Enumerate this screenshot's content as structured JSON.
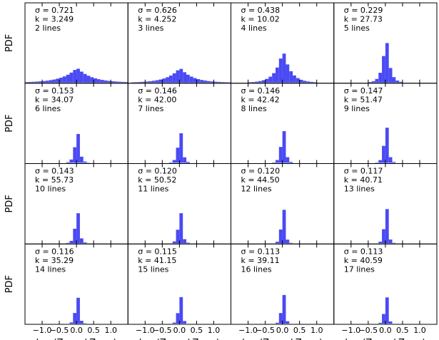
{
  "chart_data": {
    "type": "bar",
    "grid": false,
    "x_range": [
      -1.5,
      1.5
    ],
    "x_ticks": [
      "−1.0",
      "−0.5",
      "0.0",
      "0.5",
      "1.0"
    ],
    "x_tick_values": [
      -1.0,
      -0.5,
      0.0,
      0.5,
      1.0
    ],
    "y_label": "PDF",
    "x_label_parts": {
      "log": "log (Z",
      "true_sub": "TRUE",
      "slash": " / Z",
      "pred_sub": "PRED",
      "close": ")"
    },
    "panels": [
      {
        "sigma": "σ = 0.721",
        "k": "k = 3.249",
        "lines": "2 lines",
        "peak": 0.2,
        "width": 0.45,
        "scale": 1.0
      },
      {
        "sigma": "σ = 0.626",
        "k": "k = 4.252",
        "lines": "3 lines",
        "peak": 0.2,
        "width": 0.38,
        "scale": 1.0
      },
      {
        "sigma": "σ = 0.438",
        "k": "k = 10.02",
        "lines": "4 lines",
        "peak": 0.45,
        "width": 0.22,
        "scale": 1.0
      },
      {
        "sigma": "σ = 0.229",
        "k": "k = 27.73",
        "lines": "5 lines",
        "peak": 0.72,
        "width": 0.1,
        "scale": 1.0
      },
      {
        "sigma": "σ = 0.153",
        "k": "k = 34.07",
        "lines": "6 lines",
        "peak": 0.62,
        "width": 0.065,
        "scale": 1.0
      },
      {
        "sigma": "σ = 0.146",
        "k": "k = 42.00",
        "lines": "7 lines",
        "peak": 0.66,
        "width": 0.06,
        "scale": 1.0
      },
      {
        "sigma": "σ = 0.146",
        "k": "k = 42.42",
        "lines": "8 lines",
        "peak": 0.72,
        "width": 0.058,
        "scale": 1.0
      },
      {
        "sigma": "σ = 0.147",
        "k": "k = 51.47",
        "lines": "9 lines",
        "peak": 0.82,
        "width": 0.055,
        "scale": 1.0
      },
      {
        "sigma": "σ = 0.143",
        "k": "k = 55.73",
        "lines": "10 lines",
        "peak": 0.7,
        "width": 0.055,
        "scale": 1.0
      },
      {
        "sigma": "σ = 0.120",
        "k": "k = 50.52",
        "lines": "11 lines",
        "peak": 0.74,
        "width": 0.05,
        "scale": 1.0
      },
      {
        "sigma": "σ = 0.120",
        "k": "k = 44.50",
        "lines": "12 lines",
        "peak": 0.88,
        "width": 0.045,
        "scale": 1.0
      },
      {
        "sigma": "σ = 0.117",
        "k": "k = 40.71",
        "lines": "13 lines",
        "peak": 0.9,
        "width": 0.045,
        "scale": 1.0
      },
      {
        "sigma": "σ = 0.116",
        "k": "k = 35.29",
        "lines": "14 lines",
        "peak": 0.68,
        "width": 0.045,
        "scale": 1.0
      },
      {
        "sigma": "σ = 0.115",
        "k": "k = 41.15",
        "lines": "15 lines",
        "peak": 0.72,
        "width": 0.043,
        "scale": 1.0
      },
      {
        "sigma": "σ = 0.113",
        "k": "k = 39.11",
        "lines": "16 lines",
        "peak": 0.82,
        "width": 0.04,
        "scale": 1.0
      },
      {
        "sigma": "σ = 0.113",
        "k": "k = 40.59",
        "lines": "17 lines",
        "peak": 0.75,
        "width": 0.04,
        "scale": 1.0
      }
    ]
  },
  "colors": {
    "bar": "#4a4af4"
  }
}
